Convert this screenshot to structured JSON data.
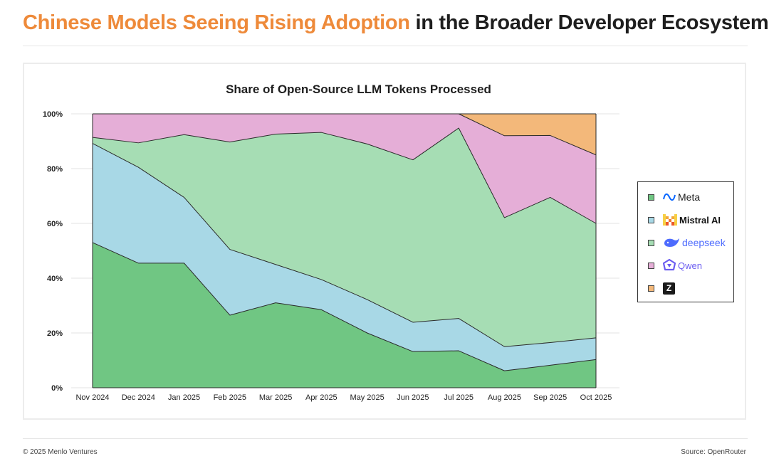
{
  "header": {
    "title_accent": "Chinese Models Seeing Rising Adoption",
    "title_rest": " in the Broader Developer Ecosystem"
  },
  "footer": {
    "copyright": "© 2025 Menlo Ventures",
    "source": "Source: OpenRouter"
  },
  "colors": {
    "meta": "#70c683",
    "mistral": "#a8d8e6",
    "deepseek": "#a6ddb4",
    "qwen": "#e5aed7",
    "zhipu": "#f3b87a",
    "accent": "#ee8a3a"
  },
  "legend": [
    {
      "name": "Meta",
      "icon": "meta-logo-icon"
    },
    {
      "name": "Mistral AI",
      "icon": "mistral-logo-icon"
    },
    {
      "name": "deepseek",
      "icon": "deepseek-whale-icon"
    },
    {
      "name": "Qwen",
      "icon": "qwen-logo-icon"
    },
    {
      "name": "Z",
      "icon": "zhipu-z-logo-icon"
    }
  ],
  "chart_data": {
    "type": "area",
    "stacked": true,
    "title": "Share of Open-Source LLM Tokens Processed",
    "xlabel": "",
    "ylabel": "",
    "ylim": [
      0,
      100
    ],
    "yticks": [
      "0%",
      "20%",
      "40%",
      "60%",
      "80%",
      "100%"
    ],
    "categories": [
      "Nov 2024",
      "Dec 2024",
      "Jan 2025",
      "Feb 2025",
      "Mar 2025",
      "Apr 2025",
      "May 2025",
      "Jun 2025",
      "Jul 2025",
      "Aug 2025",
      "Sep 2025",
      "Oct 2025"
    ],
    "series": [
      {
        "name": "Meta",
        "values": [
          53,
          45.5,
          45.5,
          26.5,
          31,
          28.5,
          20,
          13.2,
          13.5,
          6.2,
          8.2,
          10.3
        ]
      },
      {
        "name": "Mistral AI",
        "values": [
          36.2,
          35,
          24,
          24,
          14,
          11,
          12.2,
          10.7,
          11.8,
          8.8,
          8.3,
          7.9
        ]
      },
      {
        "name": "deepseek",
        "values": [
          2.2,
          8.9,
          22.9,
          39.2,
          47.6,
          53.7,
          56.8,
          59.3,
          69.5,
          47.1,
          53,
          41.8
        ]
      },
      {
        "name": "Qwen",
        "values": [
          8.6,
          10.6,
          7.6,
          10.3,
          7.4,
          6.8,
          11,
          16.8,
          5.2,
          29.9,
          22.6,
          25
        ]
      },
      {
        "name": "Z",
        "values": [
          0,
          0,
          0,
          0,
          0,
          0,
          0,
          0,
          0,
          8,
          7.9,
          15
        ]
      }
    ],
    "legend_position": "right"
  }
}
